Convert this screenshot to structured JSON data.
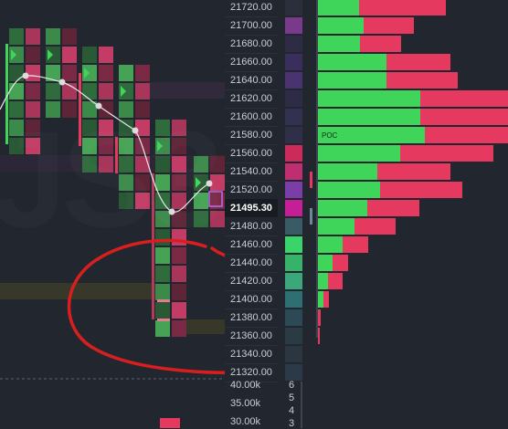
{
  "price_axis": {
    "labels": [
      "21720.00",
      "21700.00",
      "21680.00",
      "21660.00",
      "21640.00",
      "21620.00",
      "21600.00",
      "21580.00",
      "21560.00",
      "21540.00",
      "21520.00",
      "21495.30",
      "21480.00",
      "21460.00",
      "21440.00",
      "21420.00",
      "21400.00",
      "21380.00",
      "21360.00",
      "21340.00",
      "21320.00"
    ],
    "current_price": "21495.30"
  },
  "volume_profile": {
    "poc_label": "POC",
    "levels": [
      {
        "price": "21720.00",
        "buy": 45,
        "sell": 95
      },
      {
        "price": "21700.00",
        "buy": 50,
        "sell": 55
      },
      {
        "price": "21680.00",
        "buy": 46,
        "sell": 45
      },
      {
        "price": "21660.00",
        "buy": 75,
        "sell": 70
      },
      {
        "price": "21640.00",
        "buy": 75,
        "sell": 78
      },
      {
        "price": "21620.00",
        "buy": 112,
        "sell": 104
      },
      {
        "price": "21600.00",
        "buy": 112,
        "sell": 104
      },
      {
        "price": "21580.00",
        "buy": 117,
        "sell": 100
      },
      {
        "price": "21560.00",
        "buy": 90,
        "sell": 102
      },
      {
        "price": "21540.00",
        "buy": 65,
        "sell": 80
      },
      {
        "price": "21520.00",
        "buy": 68,
        "sell": 90
      },
      {
        "price": "21495.30",
        "buy": 54,
        "sell": 57
      },
      {
        "price": "21480.00",
        "buy": 40,
        "sell": 45
      },
      {
        "price": "21460.00",
        "buy": 27,
        "sell": 28
      },
      {
        "price": "21440.00",
        "buy": 16,
        "sell": 17
      },
      {
        "price": "21420.00",
        "buy": 11,
        "sell": 16
      },
      {
        "price": "21400.00",
        "buy": 6,
        "sell": 6
      },
      {
        "price": "21380.00",
        "buy": 0,
        "sell": 3
      },
      {
        "price": "21360.00",
        "buy": 0,
        "sell": 2
      }
    ]
  },
  "volume_axis": {
    "labels": [
      "40.00k",
      "35.00k",
      "30.00k"
    ]
  },
  "count_axis": {
    "labels": [
      "6",
      "5",
      "4",
      "3"
    ]
  },
  "colors": {
    "background": "#22262f",
    "buy": "#3fd45a",
    "sell": "#e5395f",
    "vwap_line": "#e8e8e8",
    "annotation": "#d81f1f",
    "current_price_marker": "#b86cf2"
  }
}
